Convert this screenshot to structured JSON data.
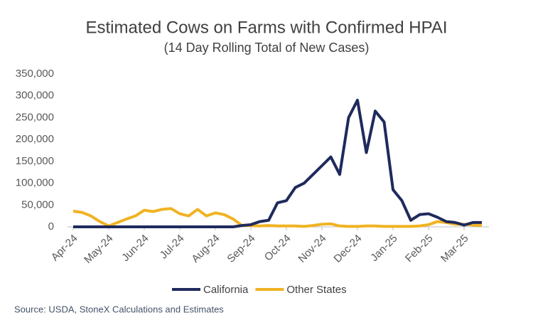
{
  "chart_data": {
    "type": "line",
    "title": "Estimated Cows on Farms with Confirmed HPAI",
    "subtitle": "(14 Day Rolling Total of New Cases)",
    "source": "Source: USDA, StoneX Calculations and Estimates",
    "categories": [
      "Apr-24",
      null,
      null,
      null,
      "May-24",
      null,
      null,
      null,
      "Jun-24",
      null,
      null,
      null,
      "Jul-24",
      null,
      null,
      null,
      "Aug-24",
      null,
      null,
      null,
      "Sep-24",
      null,
      null,
      null,
      "Oct-24",
      null,
      null,
      null,
      "Nov-24",
      null,
      null,
      null,
      "Dec-24",
      null,
      null,
      null,
      "Jan-25",
      null,
      null,
      null,
      "Feb-25",
      null,
      null,
      null,
      "Mar-25",
      null,
      null
    ],
    "series": [
      {
        "name": "California",
        "color": "#1f2a5c",
        "values": [
          0,
          0,
          0,
          0,
          0,
          0,
          0,
          0,
          0,
          0,
          0,
          0,
          0,
          0,
          0,
          0,
          0,
          0,
          0,
          3000,
          5000,
          12000,
          15000,
          55000,
          60000,
          90000,
          100000,
          120000,
          140000,
          160000,
          120000,
          250000,
          290000,
          170000,
          265000,
          240000,
          85000,
          60000,
          15000,
          28000,
          30000,
          22000,
          12000,
          10000,
          4000,
          10000,
          10000
        ]
      },
      {
        "name": "Other States",
        "color": "#f0b323",
        "values": [
          36000,
          33000,
          25000,
          12000,
          2000,
          10000,
          18000,
          25000,
          38000,
          35000,
          40000,
          42000,
          30000,
          25000,
          40000,
          25000,
          32000,
          28000,
          18000,
          3000,
          3000,
          2000,
          3000,
          2000,
          2000,
          2000,
          1000,
          3000,
          6000,
          7000,
          2000,
          1000,
          1000,
          2000,
          2000,
          1000,
          1000,
          1000,
          1000,
          2000,
          5000,
          12000,
          10000,
          6000,
          6000,
          4000,
          3000
        ]
      }
    ],
    "ylim": [
      0,
      350000
    ],
    "yticks": [
      0,
      {
        "value": 50000,
        "label": "50,000"
      },
      {
        "value": 100000,
        "label": "100,000"
      },
      {
        "value": 150000,
        "label": "150,000"
      },
      {
        "value": 200000,
        "label": "200,000"
      },
      {
        "value": 250000,
        "label": "250,000"
      },
      {
        "value": 300000,
        "label": "300,000"
      },
      {
        "value": 350000,
        "label": "350,000"
      }
    ],
    "grid": false,
    "legend": "bottom"
  }
}
